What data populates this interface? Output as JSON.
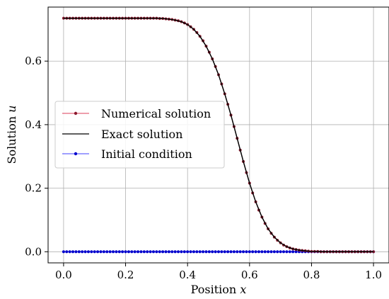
{
  "chart_data": {
    "type": "line",
    "xlabel": "Position",
    "xlabel_var": "x",
    "ylabel": "Solution",
    "ylabel_var": "u",
    "xlim": [
      -0.05,
      1.05
    ],
    "ylim": [
      -0.035,
      0.77
    ],
    "xticks": [
      0.0,
      0.2,
      0.4,
      0.6,
      0.8,
      1.0
    ],
    "xtick_labels": [
      "0.0",
      "0.2",
      "0.4",
      "0.6",
      "0.8",
      "1.0"
    ],
    "yticks": [
      0.0,
      0.2,
      0.4,
      0.6
    ],
    "ytick_labels": [
      "0.0",
      "0.2",
      "0.4",
      "0.6"
    ],
    "grid": true,
    "legend_position": "center-left",
    "series": [
      {
        "name": "Numerical solution",
        "color": "#dc3c5a",
        "marker_color": "#8b1a2e",
        "style": "line-markers",
        "points": [
          [
            0.0,
            0.735
          ],
          [
            0.01,
            0.735
          ],
          [
            0.02,
            0.735
          ],
          [
            0.03,
            0.735
          ],
          [
            0.04,
            0.735
          ],
          [
            0.05,
            0.735
          ],
          [
            0.06,
            0.735
          ],
          [
            0.07,
            0.735
          ],
          [
            0.08,
            0.735
          ],
          [
            0.09,
            0.735
          ],
          [
            0.1,
            0.735
          ],
          [
            0.11,
            0.735
          ],
          [
            0.12,
            0.735
          ],
          [
            0.13,
            0.735
          ],
          [
            0.14,
            0.735
          ],
          [
            0.15,
            0.735
          ],
          [
            0.16,
            0.735
          ],
          [
            0.17,
            0.735
          ],
          [
            0.18,
            0.735
          ],
          [
            0.19,
            0.735
          ],
          [
            0.2,
            0.735
          ],
          [
            0.21,
            0.735
          ],
          [
            0.22,
            0.735
          ],
          [
            0.23,
            0.735
          ],
          [
            0.24,
            0.735
          ],
          [
            0.25,
            0.735
          ],
          [
            0.26,
            0.735
          ],
          [
            0.27,
            0.735
          ],
          [
            0.28,
            0.735
          ],
          [
            0.29,
            0.735
          ],
          [
            0.3,
            0.735
          ],
          [
            0.31,
            0.734
          ],
          [
            0.32,
            0.734
          ],
          [
            0.33,
            0.733
          ],
          [
            0.34,
            0.732
          ],
          [
            0.35,
            0.731
          ],
          [
            0.36,
            0.729
          ],
          [
            0.37,
            0.727
          ],
          [
            0.38,
            0.724
          ],
          [
            0.39,
            0.72
          ],
          [
            0.4,
            0.715
          ],
          [
            0.41,
            0.708
          ],
          [
            0.42,
            0.7
          ],
          [
            0.43,
            0.69
          ],
          [
            0.44,
            0.678
          ],
          [
            0.45,
            0.664
          ],
          [
            0.46,
            0.647
          ],
          [
            0.47,
            0.628
          ],
          [
            0.48,
            0.607
          ],
          [
            0.49,
            0.583
          ],
          [
            0.5,
            0.557
          ],
          [
            0.51,
            0.528
          ],
          [
            0.52,
            0.497
          ],
          [
            0.53,
            0.464
          ],
          [
            0.54,
            0.43
          ],
          [
            0.55,
            0.394
          ],
          [
            0.56,
            0.357
          ],
          [
            0.57,
            0.32
          ],
          [
            0.58,
            0.284
          ],
          [
            0.59,
            0.249
          ],
          [
            0.6,
            0.216
          ],
          [
            0.61,
            0.185
          ],
          [
            0.62,
            0.157
          ],
          [
            0.63,
            0.131
          ],
          [
            0.64,
            0.109
          ],
          [
            0.65,
            0.089
          ],
          [
            0.66,
            0.072
          ],
          [
            0.67,
            0.058
          ],
          [
            0.68,
            0.046
          ],
          [
            0.69,
            0.036
          ],
          [
            0.7,
            0.028
          ],
          [
            0.71,
            0.021
          ],
          [
            0.72,
            0.016
          ],
          [
            0.73,
            0.012
          ],
          [
            0.74,
            0.009
          ],
          [
            0.75,
            0.007
          ],
          [
            0.76,
            0.005
          ],
          [
            0.77,
            0.004
          ],
          [
            0.78,
            0.003
          ],
          [
            0.79,
            0.002
          ],
          [
            0.8,
            0.001
          ],
          [
            0.81,
            0.001
          ],
          [
            0.82,
            0.001
          ],
          [
            0.83,
            0.0
          ],
          [
            0.84,
            0.0
          ],
          [
            0.85,
            0.0
          ],
          [
            0.86,
            0.0
          ],
          [
            0.87,
            0.0
          ],
          [
            0.88,
            0.0
          ],
          [
            0.89,
            0.0
          ],
          [
            0.9,
            0.0
          ],
          [
            0.91,
            0.0
          ],
          [
            0.92,
            0.0
          ],
          [
            0.93,
            0.0
          ],
          [
            0.94,
            0.0
          ],
          [
            0.95,
            0.0
          ],
          [
            0.96,
            0.0
          ],
          [
            0.97,
            0.0
          ],
          [
            0.98,
            0.0
          ],
          [
            0.99,
            0.0
          ],
          [
            1.0,
            0.0
          ]
        ]
      },
      {
        "name": "Exact solution",
        "color": "#000000",
        "style": "line",
        "points": [
          [
            0.0,
            0.735
          ],
          [
            0.05,
            0.735
          ],
          [
            0.1,
            0.735
          ],
          [
            0.15,
            0.735
          ],
          [
            0.2,
            0.735
          ],
          [
            0.25,
            0.735
          ],
          [
            0.3,
            0.735
          ],
          [
            0.32,
            0.734
          ],
          [
            0.34,
            0.732
          ],
          [
            0.36,
            0.729
          ],
          [
            0.38,
            0.724
          ],
          [
            0.4,
            0.715
          ],
          [
            0.42,
            0.7
          ],
          [
            0.44,
            0.678
          ],
          [
            0.46,
            0.647
          ],
          [
            0.48,
            0.607
          ],
          [
            0.5,
            0.557
          ],
          [
            0.52,
            0.497
          ],
          [
            0.54,
            0.43
          ],
          [
            0.56,
            0.357
          ],
          [
            0.58,
            0.284
          ],
          [
            0.6,
            0.216
          ],
          [
            0.62,
            0.157
          ],
          [
            0.64,
            0.109
          ],
          [
            0.66,
            0.072
          ],
          [
            0.68,
            0.046
          ],
          [
            0.7,
            0.028
          ],
          [
            0.72,
            0.016
          ],
          [
            0.74,
            0.009
          ],
          [
            0.76,
            0.005
          ],
          [
            0.78,
            0.003
          ],
          [
            0.8,
            0.001
          ],
          [
            0.82,
            0.001
          ],
          [
            0.84,
            0.0
          ],
          [
            0.88,
            0.0
          ],
          [
            0.92,
            0.0
          ],
          [
            0.96,
            0.0
          ],
          [
            1.0,
            0.0
          ]
        ]
      },
      {
        "name": "Initial condition",
        "color": "#4040ff",
        "marker_color": "#0000cc",
        "style": "line-markers",
        "points": [
          [
            0.0,
            0.0
          ],
          [
            0.01,
            0.0
          ],
          [
            0.02,
            0.0
          ],
          [
            0.03,
            0.0
          ],
          [
            0.04,
            0.0
          ],
          [
            0.05,
            0.0
          ],
          [
            0.06,
            0.0
          ],
          [
            0.07,
            0.0
          ],
          [
            0.08,
            0.0
          ],
          [
            0.09,
            0.0
          ],
          [
            0.1,
            0.0
          ],
          [
            0.11,
            0.0
          ],
          [
            0.12,
            0.0
          ],
          [
            0.13,
            0.0
          ],
          [
            0.14,
            0.0
          ],
          [
            0.15,
            0.0
          ],
          [
            0.16,
            0.0
          ],
          [
            0.17,
            0.0
          ],
          [
            0.18,
            0.0
          ],
          [
            0.19,
            0.0
          ],
          [
            0.2,
            0.0
          ],
          [
            0.21,
            0.0
          ],
          [
            0.22,
            0.0
          ],
          [
            0.23,
            0.0
          ],
          [
            0.24,
            0.0
          ],
          [
            0.25,
            0.0
          ],
          [
            0.26,
            0.0
          ],
          [
            0.27,
            0.0
          ],
          [
            0.28,
            0.0
          ],
          [
            0.29,
            0.0
          ],
          [
            0.3,
            0.0
          ],
          [
            0.31,
            0.0
          ],
          [
            0.32,
            0.0
          ],
          [
            0.33,
            0.0
          ],
          [
            0.34,
            0.0
          ],
          [
            0.35,
            0.0
          ],
          [
            0.36,
            0.0
          ],
          [
            0.37,
            0.0
          ],
          [
            0.38,
            0.0
          ],
          [
            0.39,
            0.0
          ],
          [
            0.4,
            0.0
          ],
          [
            0.41,
            0.0
          ],
          [
            0.42,
            0.0
          ],
          [
            0.43,
            0.0
          ],
          [
            0.44,
            0.0
          ],
          [
            0.45,
            0.0
          ],
          [
            0.46,
            0.0
          ],
          [
            0.47,
            0.0
          ],
          [
            0.48,
            0.0
          ],
          [
            0.49,
            0.0
          ],
          [
            0.5,
            0.0
          ],
          [
            0.51,
            0.0
          ],
          [
            0.52,
            0.0
          ],
          [
            0.53,
            0.0
          ],
          [
            0.54,
            0.0
          ],
          [
            0.55,
            0.0
          ],
          [
            0.56,
            0.0
          ],
          [
            0.57,
            0.0
          ],
          [
            0.58,
            0.0
          ],
          [
            0.59,
            0.0
          ],
          [
            0.6,
            0.0
          ],
          [
            0.61,
            0.0
          ],
          [
            0.62,
            0.0
          ],
          [
            0.63,
            0.0
          ],
          [
            0.64,
            0.0
          ],
          [
            0.65,
            0.0
          ],
          [
            0.66,
            0.0
          ],
          [
            0.67,
            0.0
          ],
          [
            0.68,
            0.0
          ],
          [
            0.69,
            0.0
          ],
          [
            0.7,
            0.0
          ],
          [
            0.71,
            0.0
          ],
          [
            0.72,
            0.0
          ],
          [
            0.73,
            0.0
          ],
          [
            0.74,
            0.0
          ],
          [
            0.75,
            0.0
          ],
          [
            0.76,
            0.0
          ],
          [
            0.77,
            0.0
          ],
          [
            0.78,
            0.0
          ],
          [
            0.79,
            0.0
          ],
          [
            0.8,
            0.0
          ],
          [
            0.81,
            0.0
          ],
          [
            0.82,
            0.0
          ],
          [
            0.83,
            0.0
          ],
          [
            0.84,
            0.0
          ],
          [
            0.85,
            0.0
          ],
          [
            0.86,
            0.0
          ],
          [
            0.87,
            0.0
          ],
          [
            0.88,
            0.0
          ],
          [
            0.89,
            0.0
          ],
          [
            0.9,
            0.0
          ],
          [
            0.91,
            0.0
          ],
          [
            0.92,
            0.0
          ],
          [
            0.93,
            0.0
          ],
          [
            0.94,
            0.0
          ],
          [
            0.95,
            0.0
          ],
          [
            0.96,
            0.0
          ],
          [
            0.97,
            0.0
          ],
          [
            0.98,
            0.0
          ],
          [
            0.99,
            0.0
          ],
          [
            1.0,
            0.0
          ]
        ]
      }
    ]
  }
}
